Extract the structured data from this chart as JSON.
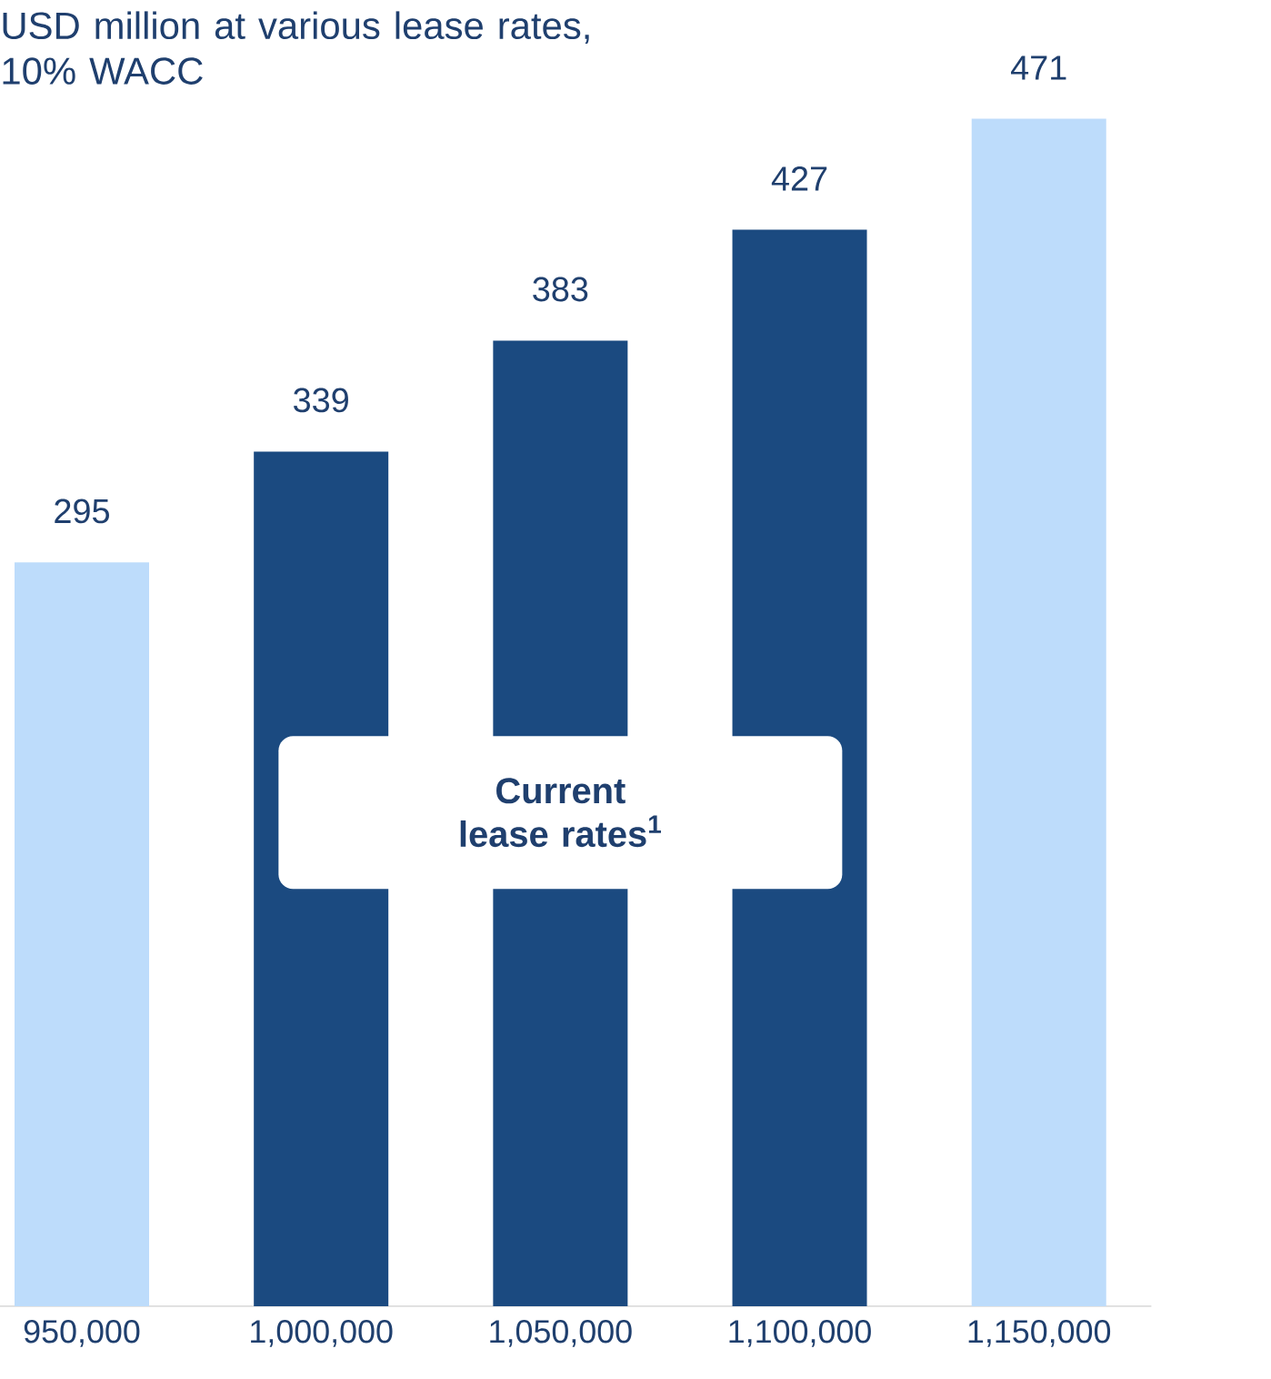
{
  "chart_data": {
    "type": "bar",
    "title": "USD million at various lease rates, 10% WACC",
    "categories": [
      "950,000",
      "1,000,000",
      "1,050,000",
      "1,100,000",
      "1,150,000"
    ],
    "values": [
      295,
      339,
      383,
      427,
      471
    ],
    "colors": [
      "#bddcfb",
      "#1b4a80",
      "#1b4a80",
      "#1b4a80",
      "#bddcfb"
    ],
    "data_labels": true,
    "annotations": [
      "Current lease rates$^{1}$"
    ]
  }
}
